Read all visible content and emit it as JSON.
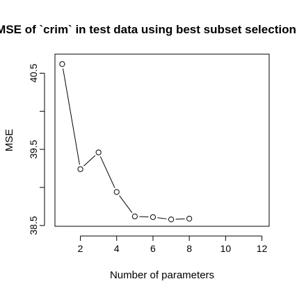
{
  "chart_data": {
    "type": "line",
    "title": "MSE of `crim` in test data using best subset selection",
    "xlabel": "Number of parameters",
    "ylabel": "MSE",
    "xlim": [
      0.6,
      12.4
    ],
    "ylim": [
      38.49,
      40.75
    ],
    "x_ticks": [
      2,
      4,
      6,
      8,
      10,
      12
    ],
    "y_ticks": [
      38.5,
      39.5,
      40.5
    ],
    "y_minor_ticks": [
      39.0,
      40.0
    ],
    "grid": false,
    "legend": "none",
    "marker": "open-circle",
    "line_style": "b",
    "colors": {
      "line": "#000000",
      "marker_stroke": "#000000",
      "marker_fill": "#ffffff",
      "background": "#ffffff"
    },
    "x": [
      1,
      2,
      3,
      4,
      5,
      6,
      7,
      8
    ],
    "y": [
      40.62,
      39.24,
      39.46,
      38.94,
      38.62,
      38.61,
      38.58,
      38.59
    ]
  }
}
